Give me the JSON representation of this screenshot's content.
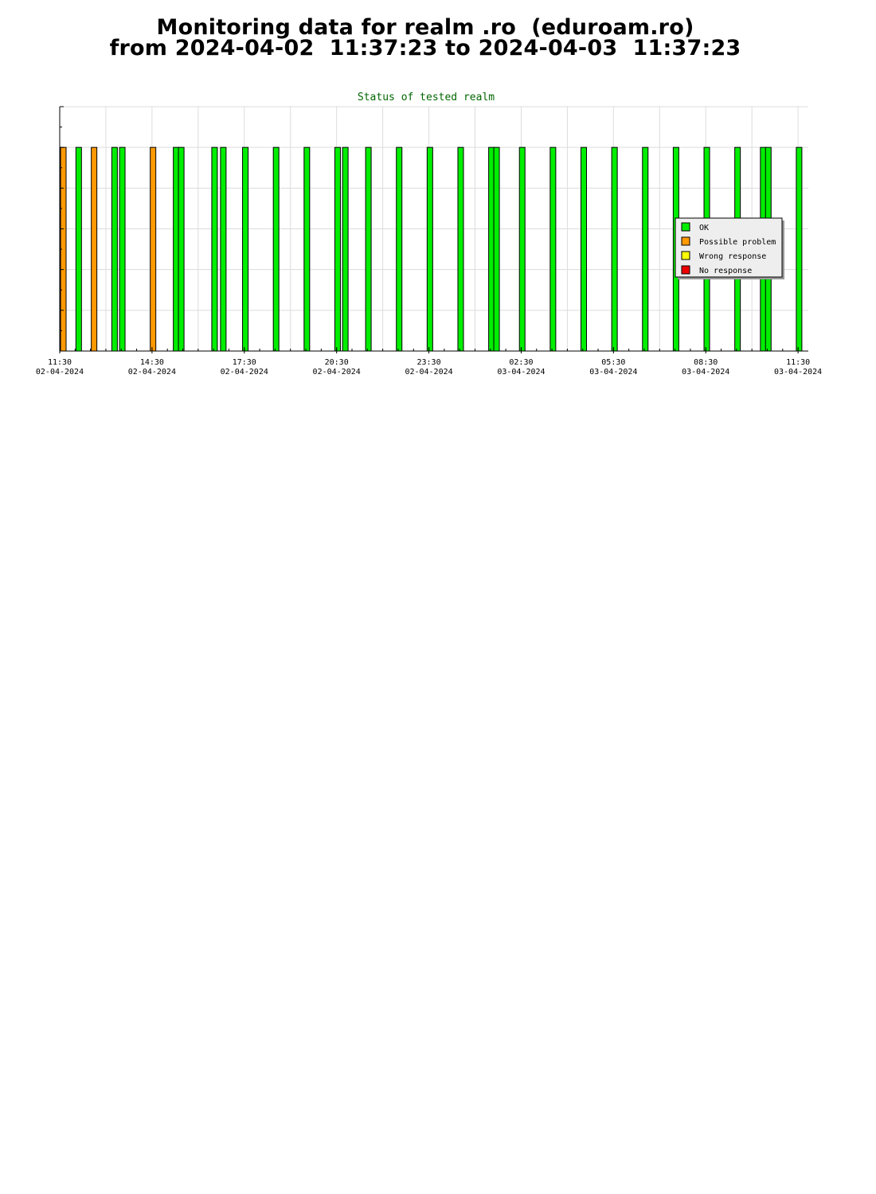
{
  "header": {
    "line1": "Monitoring data for realm .ro  (eduroam.ro)",
    "line2": "from 2024-04-02  11:37:23 to 2024-04-03  11:37:23"
  },
  "chart_data": {
    "type": "bar",
    "title": "Status of tested realm",
    "title_color": "#006600",
    "x_axis": {
      "start": "2024-04-02 11:30",
      "end": "2024-04-03 11:50",
      "ticks": [
        {
          "time": "2024-04-02 11:30",
          "label_time": "11:30",
          "label_date": "02-04-2024"
        },
        {
          "time": "2024-04-02 14:30",
          "label_time": "14:30",
          "label_date": "02-04-2024"
        },
        {
          "time": "2024-04-02 17:30",
          "label_time": "17:30",
          "label_date": "02-04-2024"
        },
        {
          "time": "2024-04-02 20:30",
          "label_time": "20:30",
          "label_date": "02-04-2024"
        },
        {
          "time": "2024-04-02 23:30",
          "label_time": "23:30",
          "label_date": "02-04-2024"
        },
        {
          "time": "2024-04-03 02:30",
          "label_time": "02:30",
          "label_date": "03-04-2024"
        },
        {
          "time": "2024-04-03 05:30",
          "label_time": "05:30",
          "label_date": "03-04-2024"
        },
        {
          "time": "2024-04-03 08:30",
          "label_time": "08:30",
          "label_date": "03-04-2024"
        },
        {
          "time": "2024-04-03 11:30",
          "label_time": "11:30",
          "label_date": "03-04-2024"
        }
      ],
      "grid": true
    },
    "y_axis": {
      "range": [
        0,
        1.2
      ],
      "grid": true,
      "tick_labels": false
    },
    "legend": {
      "placement": "right",
      "items": [
        {
          "name": "OK",
          "color": "#00ee00"
        },
        {
          "name": "Possible problem",
          "color": "#ff9900"
        },
        {
          "name": "Wrong response",
          "color": "#ffff00"
        },
        {
          "name": "No response",
          "color": "#ee0000"
        }
      ]
    },
    "series": [
      {
        "time": "2024-04-02 11:37",
        "status": "Possible problem",
        "value": 1
      },
      {
        "time": "2024-04-02 12:07",
        "status": "OK",
        "value": 1
      },
      {
        "time": "2024-04-02 12:37",
        "status": "Possible problem",
        "value": 1
      },
      {
        "time": "2024-04-02 13:17",
        "status": "OK",
        "value": 1
      },
      {
        "time": "2024-04-02 13:32",
        "status": "OK",
        "value": 1
      },
      {
        "time": "2024-04-02 14:32",
        "status": "Possible problem",
        "value": 1
      },
      {
        "time": "2024-04-02 15:17",
        "status": "OK",
        "value": 1
      },
      {
        "time": "2024-04-02 15:27",
        "status": "OK",
        "value": 1
      },
      {
        "time": "2024-04-02 16:32",
        "status": "OK",
        "value": 1
      },
      {
        "time": "2024-04-02 16:49",
        "status": "OK",
        "value": 1
      },
      {
        "time": "2024-04-02 17:32",
        "status": "OK",
        "value": 1
      },
      {
        "time": "2024-04-02 18:32",
        "status": "OK",
        "value": 1
      },
      {
        "time": "2024-04-02 19:32",
        "status": "OK",
        "value": 1
      },
      {
        "time": "2024-04-02 20:32",
        "status": "OK",
        "value": 1
      },
      {
        "time": "2024-04-02 20:47",
        "status": "OK",
        "value": 1
      },
      {
        "time": "2024-04-02 21:32",
        "status": "OK",
        "value": 1
      },
      {
        "time": "2024-04-02 22:32",
        "status": "OK",
        "value": 1
      },
      {
        "time": "2024-04-02 23:32",
        "status": "OK",
        "value": 1
      },
      {
        "time": "2024-04-03 00:32",
        "status": "OK",
        "value": 1
      },
      {
        "time": "2024-04-03 01:32",
        "status": "OK",
        "value": 1
      },
      {
        "time": "2024-04-03 01:42",
        "status": "OK",
        "value": 1
      },
      {
        "time": "2024-04-03 02:32",
        "status": "OK",
        "value": 1
      },
      {
        "time": "2024-04-03 03:32",
        "status": "OK",
        "value": 1
      },
      {
        "time": "2024-04-03 04:32",
        "status": "OK",
        "value": 1
      },
      {
        "time": "2024-04-03 05:32",
        "status": "OK",
        "value": 1
      },
      {
        "time": "2024-04-03 06:32",
        "status": "OK",
        "value": 1
      },
      {
        "time": "2024-04-03 07:32",
        "status": "OK",
        "value": 1
      },
      {
        "time": "2024-04-03 08:32",
        "status": "OK",
        "value": 1
      },
      {
        "time": "2024-04-03 09:32",
        "status": "OK",
        "value": 1
      },
      {
        "time": "2024-04-03 10:22",
        "status": "OK",
        "value": 1
      },
      {
        "time": "2024-04-03 10:32",
        "status": "OK",
        "value": 1
      },
      {
        "time": "2024-04-03 11:32",
        "status": "OK",
        "value": 1
      }
    ]
  }
}
